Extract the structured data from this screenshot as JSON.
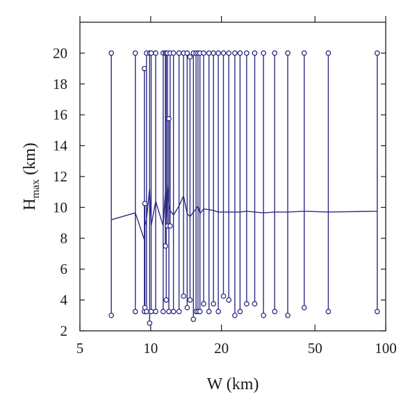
{
  "chart_data": {
    "type": "line",
    "title": "",
    "xlabel": "W (km)",
    "ylabel_main": "H",
    "ylabel_sub": "max",
    "ylabel_unit": " (km)",
    "x_scale": "log",
    "xlim": [
      5,
      100
    ],
    "ylim": [
      2,
      22
    ],
    "x_ticks": [
      5,
      10,
      20,
      50,
      100
    ],
    "x_tick_labels": [
      "5",
      "10",
      "20",
      "50",
      "100"
    ],
    "y_ticks": [
      2,
      4,
      6,
      8,
      10,
      12,
      14,
      16,
      18,
      20
    ],
    "y_tick_labels": [
      "2",
      "4",
      "6",
      "8",
      "10",
      "12",
      "14",
      "16",
      "18",
      "20"
    ],
    "grid": false,
    "series_color": "#2e2a85",
    "series": [
      {
        "name": "",
        "marker": "open-circle",
        "spikes": [
          {
            "w": 6.8,
            "top": 20,
            "bottom": 3.0,
            "mid": 9.2
          },
          {
            "w": 8.6,
            "top": 20,
            "bottom": 3.25,
            "mid": 9.65
          },
          {
            "w": 9.4,
            "top": 19,
            "bottom": 3.25,
            "mid": 7.9
          },
          {
            "w": 9.45,
            "top": 10.25,
            "bottom": 3.5,
            "mid": 8.8
          },
          {
            "w": 9.6,
            "top": 20,
            "bottom": 3.25,
            "mid": 9.2
          },
          {
            "w": 9.9,
            "top": 20,
            "bottom": 2.5,
            "mid": 11.25
          },
          {
            "w": 10.05,
            "top": 20,
            "bottom": 3.25,
            "mid": 8.8
          },
          {
            "w": 10.5,
            "top": 20,
            "bottom": 3.25,
            "mid": 10.4
          },
          {
            "w": 11.3,
            "top": 20,
            "bottom": 3.25,
            "mid": 8.8
          },
          {
            "w": 11.55,
            "top": 20,
            "bottom": 7.5,
            "mid": 11.0
          },
          {
            "w": 11.65,
            "top": 20,
            "bottom": 4.0,
            "mid": 9.2
          },
          {
            "w": 11.8,
            "top": 20,
            "bottom": 8.8,
            "mid": 11.5
          },
          {
            "w": 11.95,
            "top": 15.75,
            "bottom": 3.25,
            "mid": 10.2
          },
          {
            "w": 12.1,
            "top": 20,
            "bottom": 8.8,
            "mid": 9.8
          },
          {
            "w": 12.5,
            "top": 20,
            "bottom": 3.25,
            "mid": 9.5
          },
          {
            "w": 13.2,
            "top": 20,
            "bottom": 3.25,
            "mid": 10.1
          },
          {
            "w": 13.8,
            "top": 20,
            "bottom": 4.25,
            "mid": 10.75
          },
          {
            "w": 14.3,
            "top": 20,
            "bottom": 3.5,
            "mid": 9.6
          },
          {
            "w": 14.7,
            "top": 19.75,
            "bottom": 4.0,
            "mid": 9.4
          },
          {
            "w": 15.2,
            "top": 20,
            "bottom": 2.75,
            "mid": 9.7
          },
          {
            "w": 15.6,
            "top": 20,
            "bottom": 3.25,
            "mid": 9.9
          },
          {
            "w": 15.9,
            "top": 20,
            "bottom": 3.25,
            "mid": 10.1
          },
          {
            "w": 16.2,
            "top": 20,
            "bottom": 3.25,
            "mid": 9.6
          },
          {
            "w": 16.8,
            "top": 20,
            "bottom": 3.75,
            "mid": 9.9
          },
          {
            "w": 17.7,
            "top": 20,
            "bottom": 3.25,
            "mid": 9.85
          },
          {
            "w": 18.5,
            "top": 20,
            "bottom": 3.75,
            "mid": 9.8
          },
          {
            "w": 19.4,
            "top": 20,
            "bottom": 3.25,
            "mid": 9.7
          },
          {
            "w": 20.4,
            "top": 20,
            "bottom": 4.25,
            "mid": 9.7
          },
          {
            "w": 21.5,
            "top": 20,
            "bottom": 4.0,
            "mid": 9.7
          },
          {
            "w": 22.8,
            "top": 20,
            "bottom": 3.0,
            "mid": 9.7
          },
          {
            "w": 24.0,
            "top": 20,
            "bottom": 3.25,
            "mid": 9.7
          },
          {
            "w": 25.6,
            "top": 20,
            "bottom": 3.75,
            "mid": 9.75
          },
          {
            "w": 27.7,
            "top": 20,
            "bottom": 3.75,
            "mid": 9.7
          },
          {
            "w": 30.2,
            "top": 20,
            "bottom": 3.0,
            "mid": 9.65
          },
          {
            "w": 33.7,
            "top": 20,
            "bottom": 3.25,
            "mid": 9.7
          },
          {
            "w": 38.3,
            "top": 20,
            "bottom": 3.0,
            "mid": 9.7
          },
          {
            "w": 45.0,
            "top": 20,
            "bottom": 3.5,
            "mid": 9.75
          },
          {
            "w": 57.0,
            "top": 20,
            "bottom": 3.25,
            "mid": 9.7
          },
          {
            "w": 92.0,
            "top": 20,
            "bottom": 3.25,
            "mid": 9.75
          }
        ]
      }
    ]
  }
}
